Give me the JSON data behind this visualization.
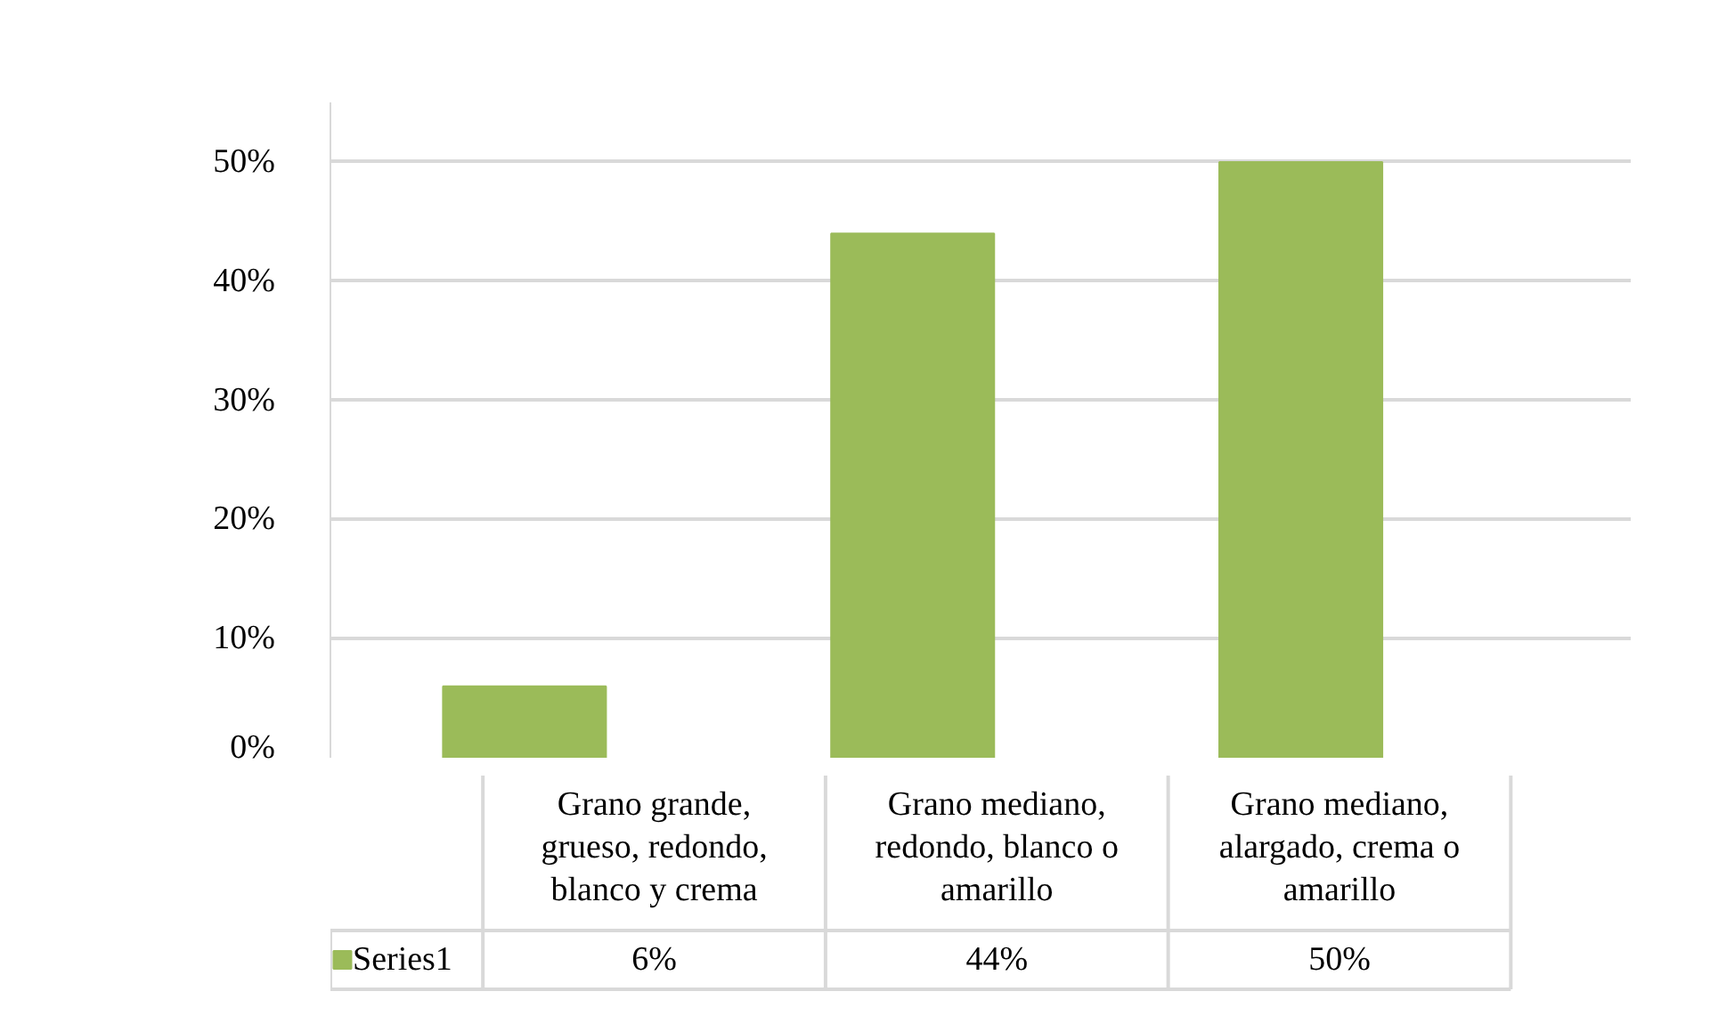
{
  "chart_data": {
    "type": "bar",
    "categories": [
      "Grano grande, grueso, redondo, blanco y crema",
      "Grano mediano, redondo, blanco o amarillo",
      "Grano mediano, alargado, crema o amarillo"
    ],
    "series": [
      {
        "name": "Series1",
        "color": "#9bbb59",
        "values": [
          6,
          44,
          50
        ],
        "value_labels": [
          "6%",
          "44%",
          "50%"
        ]
      }
    ],
    "ylim": [
      0,
      55
    ],
    "yticks": [
      {
        "value": 0,
        "label": "0%"
      },
      {
        "value": 10,
        "label": "10%"
      },
      {
        "value": 20,
        "label": "20%"
      },
      {
        "value": 30,
        "label": "30%"
      },
      {
        "value": 40,
        "label": "40%"
      },
      {
        "value": 50,
        "label": "50%"
      }
    ],
    "grid": "y",
    "legend": "bottom"
  }
}
